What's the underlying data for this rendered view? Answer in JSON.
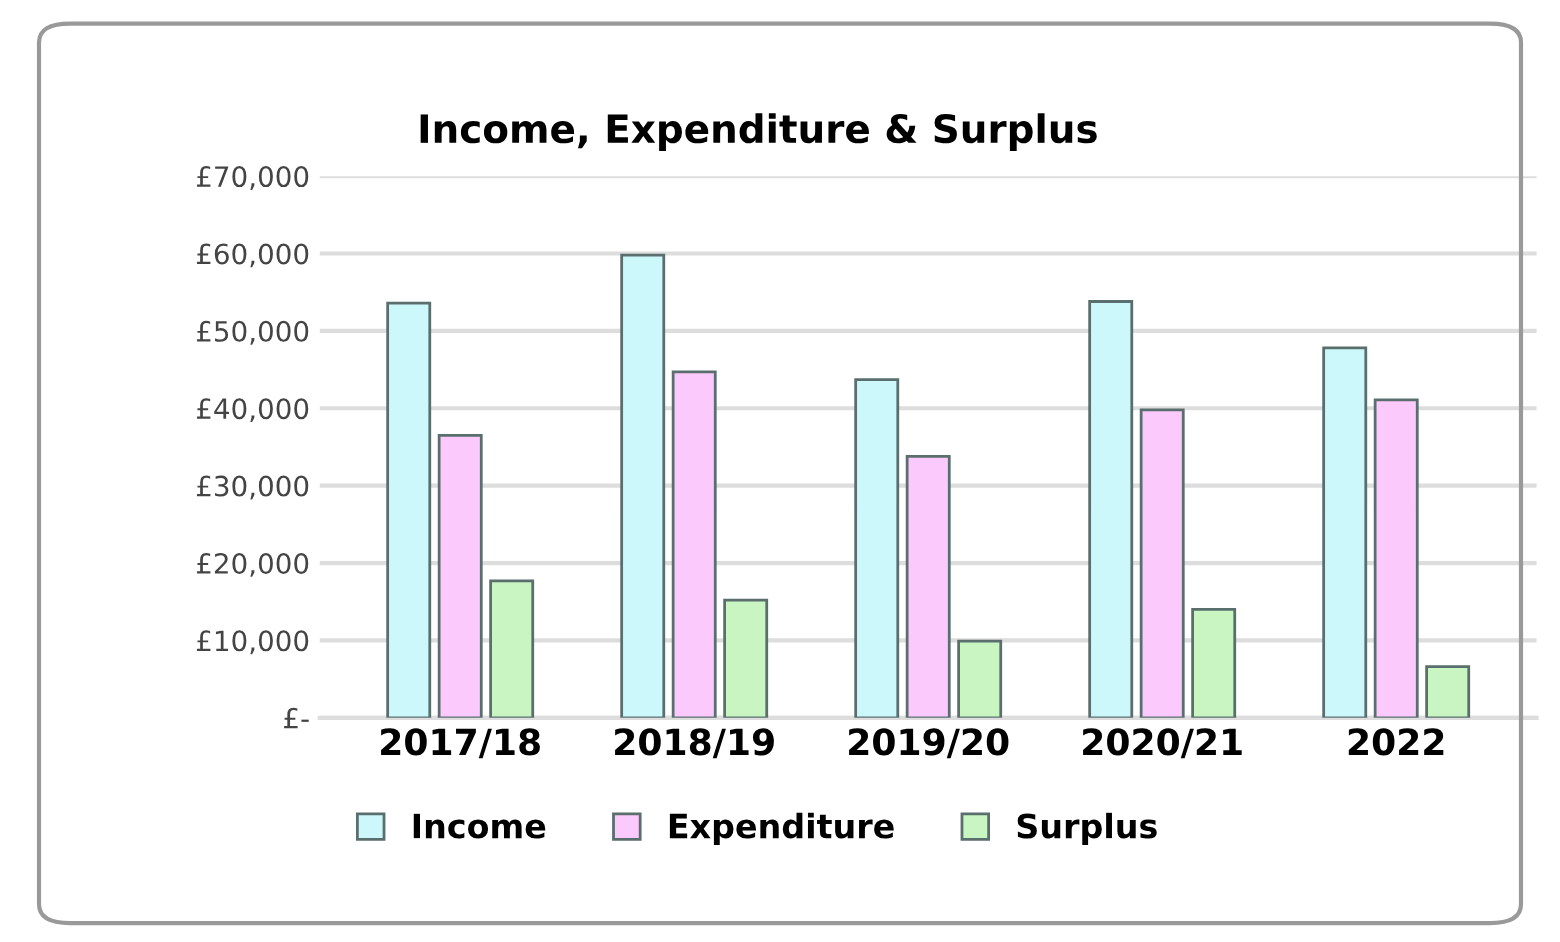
{
  "chart_data": {
    "type": "bar",
    "title": "Income, Expenditure & Surplus",
    "categories": [
      "2017/18",
      "2018/19",
      "2019/20",
      "2020/21",
      "2022"
    ],
    "series": [
      {
        "name": "Income",
        "color": "#ccf8fb",
        "values": [
          53600,
          59800,
          43700,
          53800,
          47800
        ]
      },
      {
        "name": "Expenditure",
        "color": "#fcc9fc",
        "values": [
          36500,
          44700,
          33800,
          39800,
          41100
        ]
      },
      {
        "name": "Surplus",
        "color": "#c9f5c2",
        "values": [
          17700,
          15200,
          9900,
          14000,
          6600
        ]
      }
    ],
    "ylim": [
      0,
      70000
    ],
    "yticks": [
      {
        "value": 0,
        "label": "£-"
      },
      {
        "value": 10000,
        "label": "£10,000"
      },
      {
        "value": 20000,
        "label": "£20,000"
      },
      {
        "value": 30000,
        "label": "£30,000"
      },
      {
        "value": 40000,
        "label": "£40,000"
      },
      {
        "value": 50000,
        "label": "£50,000"
      },
      {
        "value": 60000,
        "label": "£60,000"
      },
      {
        "value": 70000,
        "label": "£70,000"
      }
    ],
    "grid": "y",
    "legend": "bottom"
  }
}
